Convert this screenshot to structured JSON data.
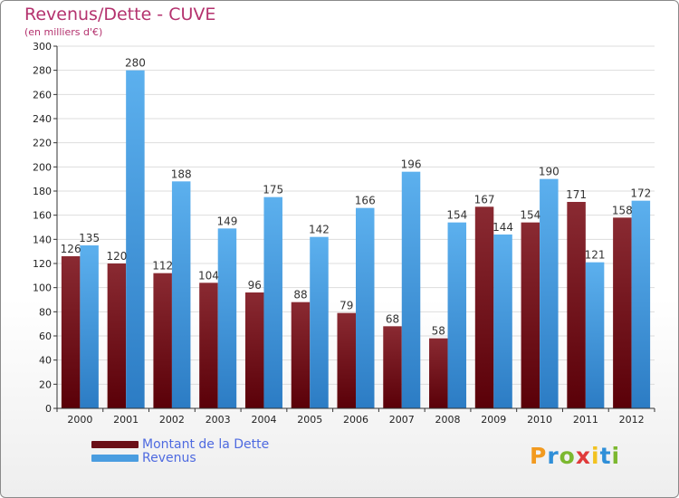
{
  "header": {
    "title": "Revenus/Dette - CUVE",
    "subtitle": "(en milliers d'€)"
  },
  "legend": [
    {
      "label": "Montant de la Dette",
      "color": "#6b0f17"
    },
    {
      "label": "Revenus",
      "color": "#4a9de0"
    }
  ],
  "logo": {
    "letters": [
      "P",
      "r",
      "o",
      "x",
      "i",
      "t",
      "i"
    ],
    "colors": [
      "#f29a1f",
      "#2f8fd8",
      "#7cb82f",
      "#e03a3a",
      "#f2c21f",
      "#2f8fd8",
      "#7cb82f"
    ]
  },
  "chart_data": {
    "type": "bar",
    "categories": [
      "2000",
      "2001",
      "2002",
      "2003",
      "2004",
      "2005",
      "2006",
      "2007",
      "2008",
      "2009",
      "2010",
      "2011",
      "2012"
    ],
    "series": [
      {
        "name": "Montant de la Dette",
        "values": [
          126,
          120,
          112,
          104,
          96,
          88,
          79,
          68,
          58,
          167,
          154,
          171,
          158
        ]
      },
      {
        "name": "Revenus",
        "values": [
          135,
          280,
          188,
          149,
          175,
          142,
          166,
          196,
          154,
          144,
          190,
          121,
          172
        ]
      }
    ],
    "ylim": [
      0,
      300
    ],
    "ytick_step": 20,
    "grid": true,
    "legend_position": "bottom-left"
  }
}
